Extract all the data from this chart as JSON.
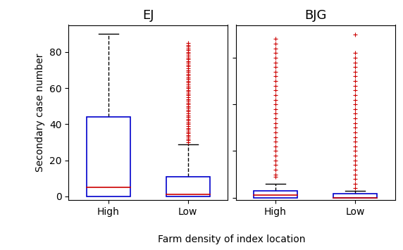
{
  "subplots": [
    {
      "title": "EJ",
      "categories": [
        "High",
        "Low"
      ],
      "boxes": [
        {
          "q1": 0,
          "median": 5,
          "q3": 44,
          "whisker_low": 0,
          "whisker_high": 90,
          "outliers": []
        },
        {
          "q1": 0,
          "median": 1,
          "q3": 11,
          "whisker_low": 0,
          "whisker_high": 29,
          "outliers": [
            30,
            31,
            32,
            33,
            34,
            35,
            36,
            37,
            38,
            39,
            40,
            41,
            42,
            43,
            44,
            45,
            46,
            47,
            48,
            49,
            50,
            51,
            52,
            53,
            54,
            55,
            56,
            57,
            58,
            59,
            60,
            61,
            62,
            63,
            64,
            65,
            66,
            67,
            68,
            69,
            70,
            71,
            72,
            73,
            74,
            75,
            76,
            77,
            78,
            79,
            80,
            81,
            82,
            83,
            84,
            85
          ]
        }
      ],
      "ylim": [
        -2,
        95
      ],
      "yticks": [
        0,
        20,
        40,
        60,
        80
      ],
      "ylabel": "Secondary case number"
    },
    {
      "title": "BJG",
      "categories": [
        "High",
        "Low"
      ],
      "boxes": [
        {
          "q1": 0,
          "median": 0.5,
          "q3": 1.5,
          "whisker_low": 0,
          "whisker_high": 3,
          "outliers": [
            4.5,
            5,
            6,
            7,
            8,
            9,
            10,
            11,
            12,
            13,
            14,
            15,
            16,
            17,
            18,
            19,
            20,
            21,
            22,
            23,
            24,
            25,
            26,
            27,
            28,
            29,
            30,
            31,
            32,
            33,
            34
          ]
        },
        {
          "q1": 0,
          "median": 0,
          "q3": 0.8,
          "whisker_low": 0,
          "whisker_high": 1.5,
          "outliers": [
            2,
            3,
            4,
            5,
            6,
            7,
            8,
            9,
            10,
            11,
            12,
            13,
            14,
            15,
            16,
            17,
            18,
            19,
            20,
            21,
            22,
            23,
            24,
            25,
            26,
            27,
            28,
            29,
            30,
            31,
            35
          ]
        }
      ],
      "ylim": [
        -0.5,
        37
      ],
      "yticks": [
        0,
        10,
        20,
        30
      ],
      "ylabel": ""
    }
  ],
  "xlabel": "Farm density of index location",
  "box_color": "#0000cc",
  "median_color": "#cc0000",
  "outlier_color": "#cc0000",
  "whisker_color": "#000000",
  "cap_color": "#000000",
  "title_fontsize": 13,
  "label_fontsize": 10,
  "tick_fontsize": 10
}
